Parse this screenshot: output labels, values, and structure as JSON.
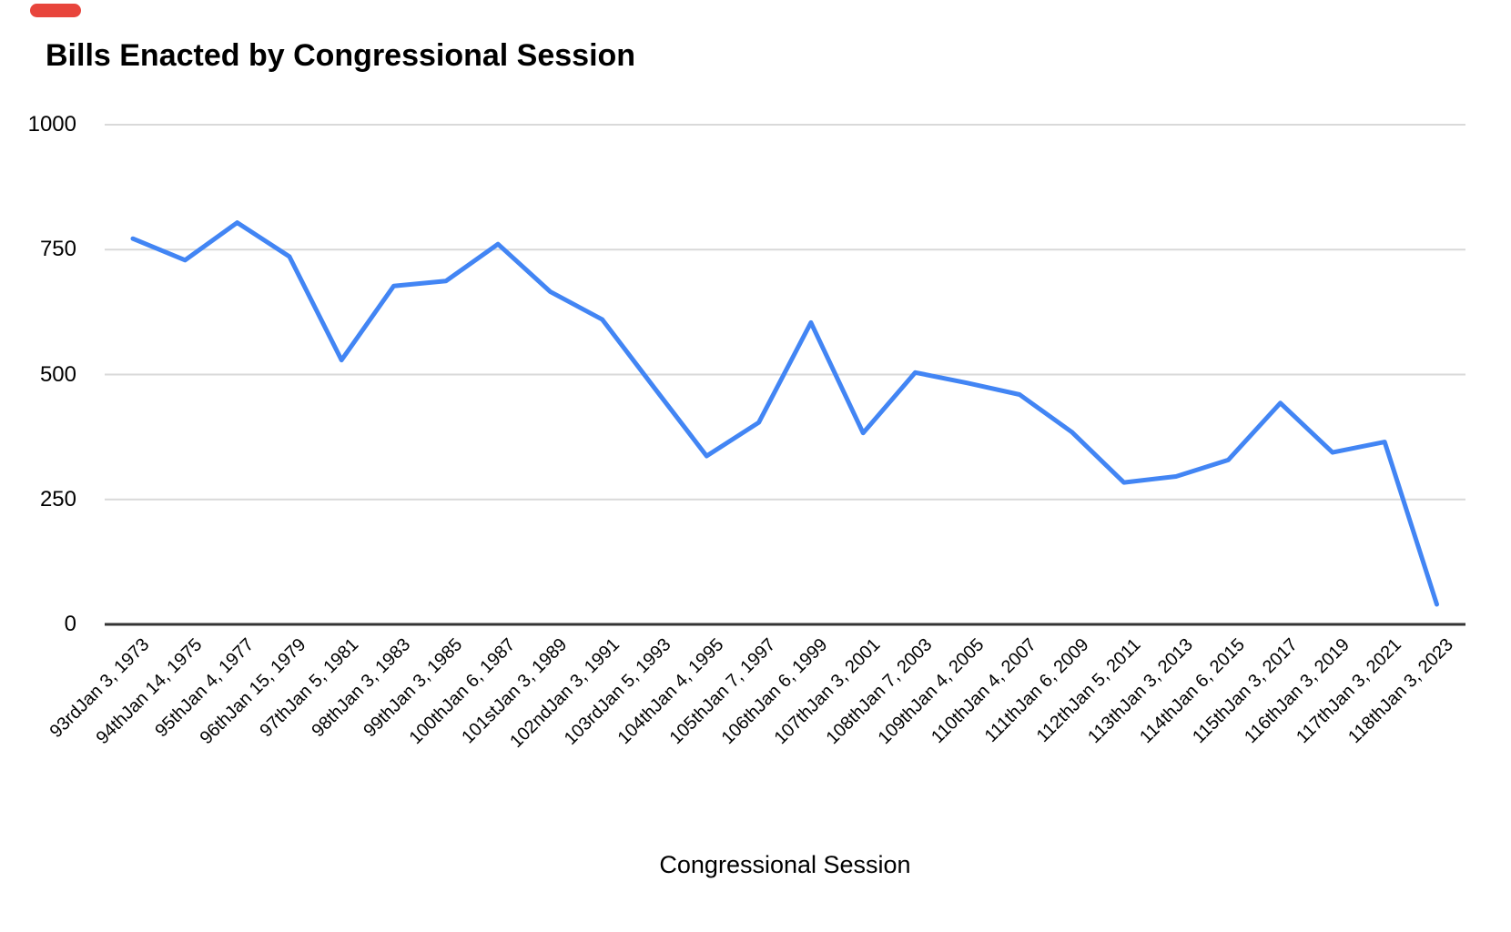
{
  "overlay": {
    "recording_indicator_color": "#e8453c"
  },
  "chart_data": {
    "type": "line",
    "title": "Bills Enacted by Congressional Session",
    "xlabel": "Congressional Session",
    "ylabel": "",
    "ylim": [
      0,
      1000
    ],
    "yticks": [
      0,
      250,
      500,
      750,
      1000
    ],
    "grid": "horizontal",
    "legend": "none",
    "series_color": "#4285f4",
    "gridline_color": "#d9d9d9",
    "axis_line_color": "#333333",
    "categories": [
      "93rdJan 3, 1973",
      "94thJan 14, 1975",
      "95thJan 4, 1977",
      "96thJan 15, 1979",
      "97thJan 5, 1981",
      "98thJan 3, 1983",
      "99thJan 3, 1985",
      "100thJan 6, 1987",
      "101stJan 3, 1989",
      "102ndJan 3, 1991",
      "103rdJan 5, 1993",
      "104thJan 4, 1995",
      "105thJan 7, 1997",
      "106thJan 6, 1999",
      "107thJan 3, 2001",
      "108thJan 7, 2003",
      "109thJan 4, 2005",
      "110thJan 4, 2007",
      "111thJan 6, 2009",
      "112thJan 5, 2011",
      "113thJan 3, 2013",
      "114thJan 6, 2015",
      "115thJan 3, 2017",
      "116thJan 3, 2019",
      "117thJan 3, 2021",
      "118thJan 3, 2023"
    ],
    "values": [
      772,
      729,
      804,
      736,
      529,
      677,
      687,
      761,
      666,
      610,
      473,
      337,
      404,
      604,
      383,
      504,
      483,
      460,
      385,
      284,
      296,
      329,
      443,
      344,
      365,
      40
    ]
  }
}
